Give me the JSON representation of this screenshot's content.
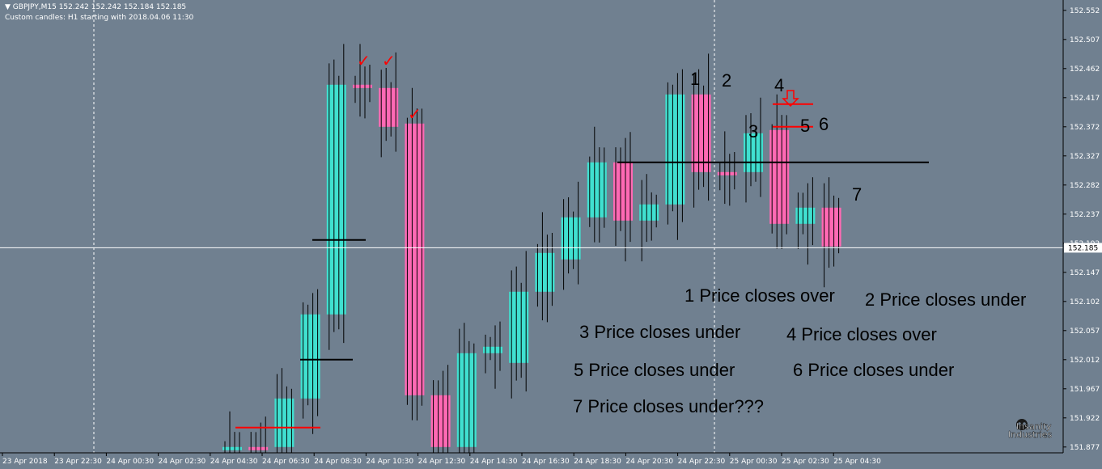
{
  "header": {
    "symbol_line": "GBPJPY,M15  152.242 152.242 152.184 152.185",
    "indicator_line": "Custom candles: H1 starting with 2018.04.06 11:30"
  },
  "colors": {
    "background": "#708090",
    "bull": "#40e0d0",
    "bear": "#ff69b4",
    "wick": "#000000",
    "level_red": "#ff0000",
    "level_black": "#000000",
    "price_line": "#ffffff",
    "check": "#ff0000"
  },
  "price_axis": {
    "ticks": [
      "152.552",
      "152.507",
      "152.462",
      "152.417",
      "152.372",
      "152.327",
      "152.282",
      "152.237",
      "152.192",
      "152.147",
      "152.102",
      "152.057",
      "152.012",
      "151.967",
      "151.922",
      "151.877"
    ],
    "current_price": "152.185"
  },
  "time_axis": {
    "labels": [
      "23 Apr 2018",
      "23 Apr 22:30",
      "24 Apr 00:30",
      "24 Apr 02:30",
      "24 Apr 04:30",
      "24 Apr 06:30",
      "24 Apr 08:30",
      "24 Apr 10:30",
      "24 Apr 12:30",
      "24 Apr 14:30",
      "24 Apr 16:30",
      "24 Apr 18:30",
      "24 Apr 20:30",
      "24 Apr 22:30",
      "25 Apr 00:30",
      "25 Apr 02:30",
      "25 Apr 04:30"
    ]
  },
  "chart_data": {
    "type": "candlestick",
    "symbol": "GBPJPY",
    "timeframe": "M15",
    "overlay": "H1",
    "y_range": [
      151.868,
      152.568
    ],
    "h1_candles": [
      {
        "open": 151.872,
        "close": 151.877
      },
      {
        "open": 151.877,
        "close": 151.872
      },
      {
        "open": 151.877,
        "close": 151.952
      },
      {
        "open": 151.952,
        "close": 152.082
      },
      {
        "open": 152.082,
        "close": 152.437
      },
      {
        "open": 152.437,
        "close": 152.432
      },
      {
        "open": 152.432,
        "close": 152.372
      },
      {
        "open": 152.377,
        "close": 151.957
      },
      {
        "open": 151.957,
        "close": 151.877
      },
      {
        "open": 151.877,
        "close": 152.022
      },
      {
        "open": 152.022,
        "close": 152.032
      },
      {
        "open": 152.007,
        "close": 152.117
      },
      {
        "open": 152.117,
        "close": 152.177
      },
      {
        "open": 152.167,
        "close": 152.232
      },
      {
        "open": 152.232,
        "close": 152.317
      },
      {
        "open": 152.317,
        "close": 152.227
      },
      {
        "open": 152.227,
        "close": 152.252
      },
      {
        "open": 152.252,
        "close": 152.422
      },
      {
        "open": 152.422,
        "close": 152.302
      },
      {
        "open": 152.302,
        "close": 152.297
      },
      {
        "open": 152.302,
        "close": 152.362
      },
      {
        "open": 152.367,
        "close": 152.222
      },
      {
        "open": 152.222,
        "close": 152.247
      },
      {
        "open": 152.247,
        "close": 152.187
      }
    ],
    "levels": [
      {
        "color": "red",
        "price": 151.907
      },
      {
        "color": "black",
        "price": 152.012
      },
      {
        "color": "black",
        "price": 152.197
      },
      {
        "color": "black",
        "price": 152.317
      },
      {
        "color": "red",
        "price": 152.372
      },
      {
        "color": "red",
        "price": 152.407
      }
    ],
    "labels": [
      "1",
      "2",
      "3",
      "4",
      "5",
      "6",
      "7"
    ]
  },
  "annotations": [
    "1 Price closes over",
    "2  Price closes under",
    "3 Price closes under",
    "4  Price closes over",
    "5  Price closes under",
    "6  Price closes under",
    "7 Price closes under???"
  ],
  "logo": {
    "line1": "Insanity",
    "line2": "Industries"
  }
}
